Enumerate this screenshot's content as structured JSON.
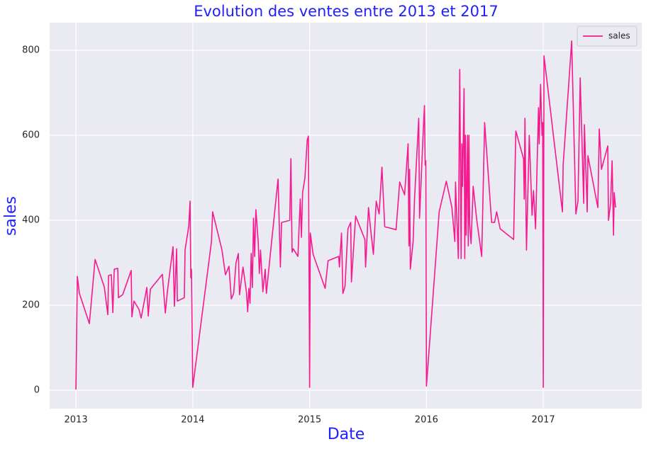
{
  "chart_data": {
    "type": "line",
    "title": "Evolution des ventes entre 2013 et 2017",
    "x_label": "Date",
    "y_label": "sales",
    "x": [
      2013.0,
      2013.012,
      2013.03,
      2013.115,
      2013.164,
      2013.243,
      2013.273,
      2013.279,
      2013.303,
      2013.316,
      2013.328,
      2013.358,
      2013.364,
      2013.4,
      2013.473,
      2013.479,
      2013.497,
      2013.54,
      2013.558,
      2013.607,
      2013.619,
      2013.637,
      2013.74,
      2013.765,
      2013.783,
      2013.831,
      2013.843,
      2013.862,
      2013.868,
      2013.928,
      2013.934,
      2013.965,
      2013.977,
      2013.983,
      2013.989,
      2014.0,
      2014.16,
      2014.17,
      2014.25,
      2014.28,
      2014.31,
      2014.33,
      2014.35,
      2014.37,
      2014.39,
      2014.4,
      2014.43,
      2014.46,
      2014.47,
      2014.48,
      2014.49,
      2014.5,
      2014.51,
      2014.52,
      2014.53,
      2014.54,
      2014.56,
      2014.57,
      2014.58,
      2014.6,
      2014.62,
      2014.63,
      2014.66,
      2014.73,
      2014.75,
      2014.76,
      2014.83,
      2014.84,
      2014.85,
      2014.86,
      2014.9,
      2014.92,
      2014.93,
      2014.94,
      2014.96,
      2014.98,
      2014.99,
      2015.0,
      2015.006,
      2015.03,
      2015.133,
      2015.158,
      2015.249,
      2015.255,
      2015.273,
      2015.285,
      2015.303,
      2015.328,
      2015.352,
      2015.358,
      2015.394,
      2015.473,
      2015.479,
      2015.504,
      2015.522,
      2015.546,
      2015.57,
      2015.595,
      2015.619,
      2015.643,
      2015.74,
      2015.771,
      2015.813,
      2015.843,
      2015.85,
      2015.856,
      2015.862,
      2015.886,
      2015.898,
      2015.934,
      2015.941,
      2015.971,
      2015.983,
      2015.989,
      2015.995,
      2016.0,
      2016.109,
      2016.17,
      2016.218,
      2016.243,
      2016.249,
      2016.273,
      2016.285,
      2016.297,
      2016.303,
      2016.309,
      2016.322,
      2016.328,
      2016.334,
      2016.34,
      2016.352,
      2016.358,
      2016.364,
      2016.37,
      2016.382,
      2016.4,
      2016.431,
      2016.473,
      2016.498,
      2016.558,
      2016.583,
      2016.601,
      2016.631,
      2016.746,
      2016.765,
      2016.831,
      2016.837,
      2016.843,
      2016.856,
      2016.88,
      2016.904,
      2016.916,
      2016.934,
      2016.959,
      2016.965,
      2016.977,
      2016.989,
      2016.995,
      2017.0,
      2017.006,
      2017.164,
      2017.17,
      2017.243,
      2017.279,
      2017.297,
      2017.316,
      2017.346,
      2017.352,
      2017.376,
      2017.382,
      2017.467,
      2017.479,
      2017.498,
      2017.552,
      2017.558,
      2017.576,
      2017.589,
      2017.601,
      2017.607,
      2017.619
    ],
    "series": [
      {
        "name": "sales",
        "color": "#f7198f",
        "values": [
          2,
          268,
          228,
          157,
          308,
          243,
          178,
          270,
          272,
          183,
          285,
          287,
          218,
          225,
          282,
          173,
          210,
          190,
          170,
          242,
          175,
          238,
          273,
          182,
          233,
          338,
          198,
          333,
          210,
          218,
          330,
          385,
          445,
          265,
          285,
          7,
          350,
          420,
          330,
          272,
          292,
          215,
          228,
          300,
          322,
          225,
          290,
          230,
          185,
          240,
          205,
          322,
          242,
          405,
          315,
          425,
          350,
          275,
          330,
          232,
          285,
          228,
          310,
          497,
          290,
          395,
          400,
          545,
          325,
          333,
          315,
          450,
          360,
          465,
          500,
          590,
          598,
          7,
          370,
          320,
          240,
          305,
          315,
          290,
          370,
          228,
          245,
          380,
          395,
          255,
          410,
          355,
          290,
          430,
          380,
          320,
          445,
          415,
          525,
          385,
          378,
          490,
          460,
          580,
          340,
          520,
          285,
          350,
          450,
          640,
          405,
          600,
          670,
          530,
          540,
          10,
          420,
          492,
          430,
          350,
          490,
          310,
          755,
          310,
          580,
          480,
          710,
          310,
          600,
          365,
          600,
          340,
          600,
          390,
          345,
          480,
          400,
          315,
          630,
          395,
          395,
          420,
          380,
          355,
          610,
          545,
          450,
          640,
          330,
          600,
          412,
          470,
          380,
          665,
          580,
          720,
          600,
          630,
          7,
          787,
          420,
          530,
          822,
          415,
          445,
          735,
          440,
          625,
          420,
          552,
          430,
          615,
          520,
          575,
          400,
          440,
          540,
          365,
          465,
          430
        ]
      }
    ],
    "xlim": [
      2012.775,
      2017.843
    ],
    "xticks": [
      2013,
      2014,
      2015,
      2016,
      2017
    ],
    "ylim": [
      -43,
      865
    ],
    "yticks": [
      0,
      200,
      400,
      600,
      800
    ],
    "grid": true,
    "legend": "upper right"
  }
}
